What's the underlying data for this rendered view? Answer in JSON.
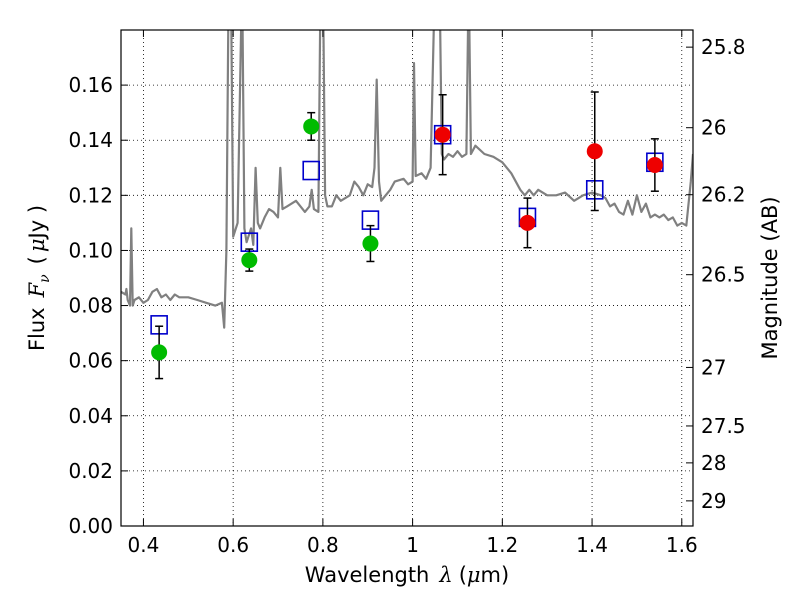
{
  "chart_data": {
    "type": "scatter",
    "x": {
      "label": "Wavelength",
      "label_symbol": "λ",
      "label_unit_prefix": "(",
      "label_unit_mu": "μ",
      "label_unit_rest": "m)",
      "lim": [
        0.35,
        1.625
      ],
      "ticks": [
        0.4,
        0.6,
        0.8,
        1.0,
        1.2,
        1.4,
        1.6
      ],
      "tick_labels": [
        "0.4",
        "0.6",
        "0.8",
        "1",
        "1.2",
        "1.4",
        "1.6"
      ]
    },
    "y": {
      "label": "Flux",
      "label_symbol": "F",
      "label_subscript": "ν",
      "label_unit_prefix": "(",
      "label_unit_mu": "μ",
      "label_unit_rest": "Jy )",
      "lim": [
        0.0,
        0.18
      ],
      "ticks": [
        0.0,
        0.02,
        0.04,
        0.06,
        0.08,
        0.1,
        0.12,
        0.14,
        0.16
      ],
      "tick_labels": [
        "0.00",
        "0.02",
        "0.04",
        "0.06",
        "0.08",
        "0.10",
        "0.12",
        "0.14",
        "0.16"
      ]
    },
    "y2": {
      "label": "Magnitude (AB)",
      "ticks": [
        25.8,
        26,
        26.2,
        26.5,
        27,
        27.5,
        28,
        29
      ],
      "tick_labels": [
        "25.8",
        "26",
        "26.2",
        "26.5",
        "27",
        "27.5",
        "28",
        "29"
      ]
    },
    "grid": "dotted",
    "series": [
      {
        "kind": "line",
        "color": "#808080",
        "points": [
          [
            0.35,
            0.085
          ],
          [
            0.36,
            0.084
          ],
          [
            0.362,
            0.086
          ],
          [
            0.365,
            0.082
          ],
          [
            0.37,
            0.08
          ],
          [
            0.373,
            0.108
          ],
          [
            0.376,
            0.08
          ],
          [
            0.38,
            0.082
          ],
          [
            0.39,
            0.083
          ],
          [
            0.4,
            0.081
          ],
          [
            0.41,
            0.082
          ],
          [
            0.42,
            0.085
          ],
          [
            0.43,
            0.086
          ],
          [
            0.44,
            0.083
          ],
          [
            0.45,
            0.084
          ],
          [
            0.46,
            0.082
          ],
          [
            0.47,
            0.084
          ],
          [
            0.48,
            0.083
          ],
          [
            0.5,
            0.083
          ],
          [
            0.52,
            0.082
          ],
          [
            0.54,
            0.081
          ],
          [
            0.56,
            0.08
          ],
          [
            0.575,
            0.081
          ],
          [
            0.58,
            0.072
          ],
          [
            0.585,
            0.1
          ],
          [
            0.59,
            0.2
          ],
          [
            0.595,
            0.2
          ],
          [
            0.6,
            0.105
          ],
          [
            0.61,
            0.11
          ],
          [
            0.62,
            0.2
          ],
          [
            0.625,
            0.108
          ],
          [
            0.63,
            0.103
          ],
          [
            0.64,
            0.108
          ],
          [
            0.645,
            0.102
          ],
          [
            0.65,
            0.13
          ],
          [
            0.655,
            0.11
          ],
          [
            0.66,
            0.108
          ],
          [
            0.67,
            0.112
          ],
          [
            0.68,
            0.115
          ],
          [
            0.69,
            0.114
          ],
          [
            0.7,
            0.112
          ],
          [
            0.705,
            0.13
          ],
          [
            0.71,
            0.115
          ],
          [
            0.72,
            0.116
          ],
          [
            0.74,
            0.118
          ],
          [
            0.76,
            0.114
          ],
          [
            0.77,
            0.116
          ],
          [
            0.775,
            0.122
          ],
          [
            0.78,
            0.115
          ],
          [
            0.79,
            0.114
          ],
          [
            0.795,
            0.2
          ],
          [
            0.8,
            0.2
          ],
          [
            0.805,
            0.12
          ],
          [
            0.81,
            0.116
          ],
          [
            0.82,
            0.116
          ],
          [
            0.83,
            0.12
          ],
          [
            0.84,
            0.118
          ],
          [
            0.86,
            0.12
          ],
          [
            0.87,
            0.125
          ],
          [
            0.88,
            0.123
          ],
          [
            0.89,
            0.12
          ],
          [
            0.9,
            0.124
          ],
          [
            0.91,
            0.123
          ],
          [
            0.915,
            0.13
          ],
          [
            0.92,
            0.162
          ],
          [
            0.925,
            0.125
          ],
          [
            0.93,
            0.118
          ],
          [
            0.95,
            0.122
          ],
          [
            0.96,
            0.125
          ],
          [
            0.98,
            0.126
          ],
          [
            0.99,
            0.124
          ],
          [
            1.0,
            0.125
          ],
          [
            1.003,
            0.168
          ],
          [
            1.007,
            0.127
          ],
          [
            1.02,
            0.128
          ],
          [
            1.03,
            0.126
          ],
          [
            1.04,
            0.13
          ],
          [
            1.05,
            0.2
          ],
          [
            1.06,
            0.2
          ],
          [
            1.065,
            0.135
          ],
          [
            1.07,
            0.133
          ],
          [
            1.08,
            0.135
          ],
          [
            1.09,
            0.134
          ],
          [
            1.1,
            0.136
          ],
          [
            1.11,
            0.134
          ],
          [
            1.12,
            0.135
          ],
          [
            1.125,
            0.2
          ],
          [
            1.13,
            0.135
          ],
          [
            1.14,
            0.138
          ],
          [
            1.16,
            0.135
          ],
          [
            1.18,
            0.134
          ],
          [
            1.2,
            0.132
          ],
          [
            1.22,
            0.128
          ],
          [
            1.24,
            0.122
          ],
          [
            1.25,
            0.12
          ],
          [
            1.26,
            0.122
          ],
          [
            1.27,
            0.12
          ],
          [
            1.28,
            0.122
          ],
          [
            1.3,
            0.12
          ],
          [
            1.32,
            0.12
          ],
          [
            1.34,
            0.121
          ],
          [
            1.36,
            0.118
          ],
          [
            1.38,
            0.12
          ],
          [
            1.4,
            0.121
          ],
          [
            1.42,
            0.12
          ],
          [
            1.43,
            0.119
          ],
          [
            1.44,
            0.116
          ],
          [
            1.45,
            0.117
          ],
          [
            1.46,
            0.114
          ],
          [
            1.47,
            0.113
          ],
          [
            1.48,
            0.118
          ],
          [
            1.49,
            0.113
          ],
          [
            1.5,
            0.12
          ],
          [
            1.51,
            0.114
          ],
          [
            1.52,
            0.117
          ],
          [
            1.53,
            0.112
          ],
          [
            1.54,
            0.113
          ],
          [
            1.55,
            0.112
          ],
          [
            1.56,
            0.113
          ],
          [
            1.57,
            0.111
          ],
          [
            1.58,
            0.112
          ],
          [
            1.59,
            0.109
          ],
          [
            1.6,
            0.11
          ],
          [
            1.61,
            0.109
          ],
          [
            1.62,
            0.125
          ],
          [
            1.625,
            0.135
          ]
        ]
      },
      {
        "kind": "model_squares",
        "color": "#0000cc",
        "x": [
          0.435,
          0.636,
          0.774,
          0.906,
          1.067,
          1.256,
          1.406,
          1.54
        ],
        "y": [
          0.073,
          0.103,
          0.129,
          0.111,
          0.142,
          0.112,
          0.122,
          0.132
        ]
      },
      {
        "kind": "observed",
        "color": "#00bb00",
        "x": [
          0.435,
          0.636,
          0.774,
          0.906
        ],
        "y": [
          0.063,
          0.0965,
          0.145,
          0.1025
        ],
        "err": [
          0.0095,
          0.004,
          0.005,
          0.0065
        ]
      },
      {
        "kind": "observed",
        "color": "#ee0000",
        "x": [
          1.067,
          1.256,
          1.406,
          1.54
        ],
        "y": [
          0.142,
          0.11,
          0.136,
          0.131
        ],
        "err": [
          0.0145,
          0.009,
          0.0215,
          0.0095
        ]
      }
    ]
  }
}
